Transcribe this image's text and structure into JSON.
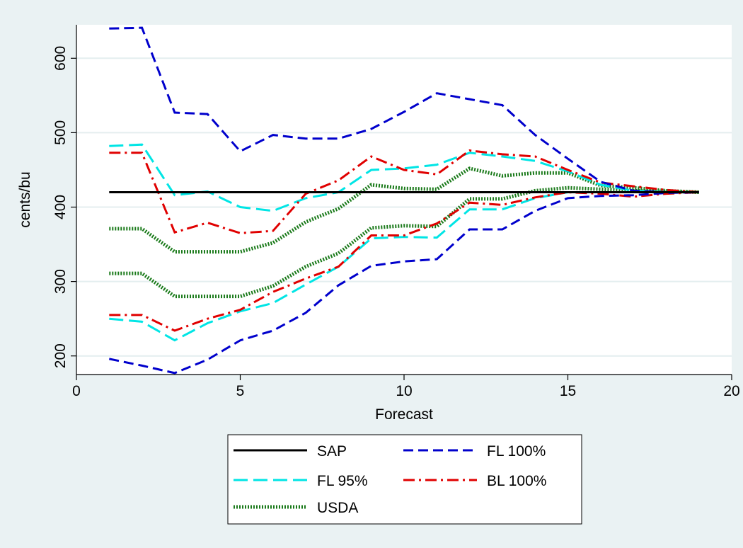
{
  "chart_data": {
    "type": "line",
    "title": "",
    "xlabel": "Forecast",
    "ylabel": "cents/bu",
    "xlim": [
      0,
      20
    ],
    "ylim": [
      175,
      645
    ],
    "xticks": [
      0,
      5,
      10,
      15,
      20
    ],
    "yticks": [
      200,
      300,
      400,
      500,
      600
    ],
    "grid": "horizontal",
    "legend_position": "bottom",
    "x": [
      1,
      2,
      3,
      4,
      5,
      6,
      7,
      8,
      9,
      10,
      11,
      12,
      13,
      14,
      15,
      16,
      17,
      18,
      19
    ],
    "series": [
      {
        "name": "SAP",
        "color": "#000000",
        "style": "solid",
        "values": [
          420,
          420,
          420,
          420,
          420,
          420,
          420,
          420,
          420,
          420,
          420,
          420,
          420,
          420,
          420,
          420,
          420,
          420,
          420
        ]
      },
      {
        "name": "FL 100%",
        "color": "#0000cc",
        "style": "dash",
        "group": "upper",
        "values": [
          640,
          641,
          527,
          525,
          475,
          497,
          492,
          492,
          505,
          528,
          553,
          545,
          537,
          497,
          465,
          434,
          422,
          420,
          420
        ]
      },
      {
        "name": "FL 100%",
        "color": "#0000cc",
        "style": "dash",
        "group": "lower",
        "values": [
          196,
          187,
          177,
          195,
          221,
          234,
          258,
          295,
          321,
          327,
          330,
          370,
          370,
          395,
          412,
          415,
          416,
          419,
          420
        ]
      },
      {
        "name": "FL 95%",
        "color": "#00e5e5",
        "style": "longdash",
        "group": "upper",
        "values": [
          482,
          484,
          416,
          421,
          400,
          395,
          412,
          420,
          450,
          452,
          457,
          473,
          468,
          462,
          448,
          430,
          422,
          420,
          420
        ]
      },
      {
        "name": "FL 95%",
        "color": "#00e5e5",
        "style": "longdash",
        "group": "lower",
        "values": [
          250,
          246,
          221,
          244,
          260,
          271,
          296,
          320,
          358,
          360,
          359,
          397,
          397,
          412,
          420,
          420,
          420,
          420,
          420
        ]
      },
      {
        "name": "BL 100%",
        "color": "#e00000",
        "style": "dashdot",
        "group": "upper",
        "values": [
          473,
          473,
          366,
          379,
          365,
          368,
          418,
          436,
          468,
          450,
          444,
          476,
          471,
          468,
          450,
          433,
          428,
          423,
          420
        ]
      },
      {
        "name": "BL 100%",
        "color": "#e00000",
        "style": "dashdot",
        "group": "lower",
        "values": [
          255,
          255,
          234,
          250,
          262,
          286,
          304,
          320,
          362,
          362,
          378,
          406,
          403,
          413,
          420,
          418,
          414,
          418,
          420
        ]
      },
      {
        "name": "USDA",
        "color": "#1a7a1a",
        "style": "dotted",
        "group": "upper",
        "values": [
          371,
          371,
          340,
          340,
          340,
          352,
          380,
          398,
          430,
          425,
          424,
          452,
          442,
          446,
          446,
          429,
          426,
          422,
          420
        ]
      },
      {
        "name": "USDA",
        "color": "#1a7a1a",
        "style": "dotted",
        "group": "lower",
        "values": [
          311,
          311,
          280,
          280,
          280,
          294,
          320,
          338,
          372,
          375,
          374,
          411,
          411,
          422,
          426,
          424,
          422,
          421,
          420
        ]
      }
    ],
    "legend": [
      {
        "name": "SAP",
        "color": "#000000",
        "style": "solid"
      },
      {
        "name": "FL 100%",
        "color": "#0000cc",
        "style": "dash"
      },
      {
        "name": "FL 95%",
        "color": "#00e5e5",
        "style": "longdash"
      },
      {
        "name": "BL 100%",
        "color": "#e00000",
        "style": "dashdot"
      },
      {
        "name": "USDA",
        "color": "#1a7a1a",
        "style": "dotted"
      }
    ]
  }
}
